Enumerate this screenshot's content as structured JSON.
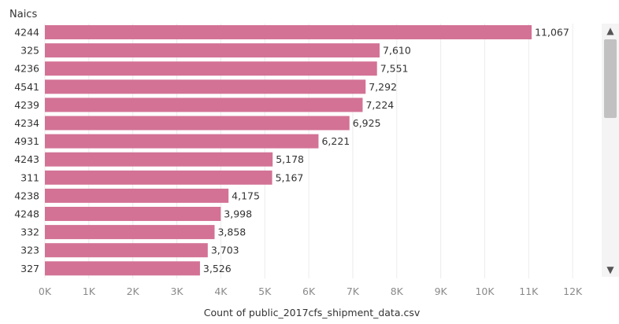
{
  "chart_data": {
    "type": "bar",
    "orientation": "horizontal",
    "row_header": "Naics",
    "categories": [
      "4244",
      "325",
      "4236",
      "4541",
      "4239",
      "4234",
      "4931",
      "4243",
      "311",
      "4238",
      "4248",
      "332",
      "323",
      "327"
    ],
    "values": [
      11067,
      7610,
      7551,
      7292,
      7224,
      6925,
      6221,
      5178,
      5167,
      4175,
      3998,
      3858,
      3703,
      3526
    ],
    "value_labels": [
      "11,067",
      "7,610",
      "7,551",
      "7,292",
      "7,224",
      "6,925",
      "6,221",
      "5,178",
      "5,167",
      "4,175",
      "3,998",
      "3,858",
      "3,703",
      "3,526"
    ],
    "xlabel": "Count of public_2017cfs_shipment_data.csv",
    "xlim": [
      0,
      12000
    ],
    "x_ticks": [
      0,
      1000,
      2000,
      3000,
      4000,
      5000,
      6000,
      7000,
      8000,
      9000,
      10000,
      11000,
      12000
    ],
    "x_tick_labels": [
      "0K",
      "1K",
      "2K",
      "3K",
      "4K",
      "5K",
      "6K",
      "7K",
      "8K",
      "9K",
      "10K",
      "11K",
      "12K"
    ],
    "gridlines": "vertical",
    "bar_color": "#d37295"
  },
  "scrollbar": {
    "up_icon": "▲",
    "down_icon": "▼"
  }
}
